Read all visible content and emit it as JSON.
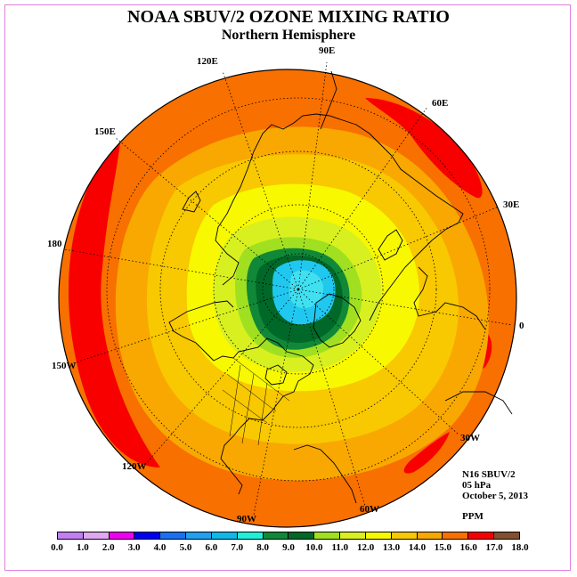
{
  "title": "NOAA SBUV/2 OZONE MIXING RATIO",
  "subtitle": "Northern Hemisphere",
  "longitude_labels": {
    "lon_90e": "90E",
    "lon_60e": "60E",
    "lon_30e": "30E",
    "lon_0": "0",
    "lon_30w": "30W",
    "lon_60w": "60W",
    "lon_90w": "90W",
    "lon_120w": "120W",
    "lon_150w": "150W",
    "lon_180": "180",
    "lon_150e": "150E",
    "lon_120e": "120E"
  },
  "info": {
    "instrument": "N16 SBUV/2",
    "pressure_level": "05 hPa",
    "date": "October 5, 2013"
  },
  "units": "PPM",
  "colorbar": {
    "colors": [
      "#c080f0",
      "#e0a8f0",
      "#f000f0",
      "#0000f0",
      "#1a70f0",
      "#20a0f0",
      "#10b8e8",
      "#20f0d8",
      "#108838",
      "#006828",
      "#a0e020",
      "#d8f020",
      "#f8f800",
      "#f8c800",
      "#f8a800",
      "#f87000",
      "#f80000",
      "#805030"
    ],
    "tick_labels": [
      "0.0",
      "1.0",
      "2.0",
      "3.0",
      "4.0",
      "5.0",
      "6.0",
      "7.0",
      "8.0",
      "9.0",
      "10.0",
      "11.0",
      "12.0",
      "13.0",
      "14.0",
      "15.0",
      "16.0",
      "17.0",
      "18.0"
    ]
  },
  "map_colors": {
    "pole_low": "#20c8f0",
    "pole_mid": "#40e0f0",
    "ring_dark_green": "#006828",
    "ring_green": "#108838",
    "ring_lime": "#a0e020",
    "ring_yellow_green": "#d8f020",
    "ring_yellow": "#f8f800",
    "ring_gold": "#f8c800",
    "ring_orange_light": "#f8a800",
    "ring_orange": "#f87000",
    "ring_red": "#f80000"
  }
}
